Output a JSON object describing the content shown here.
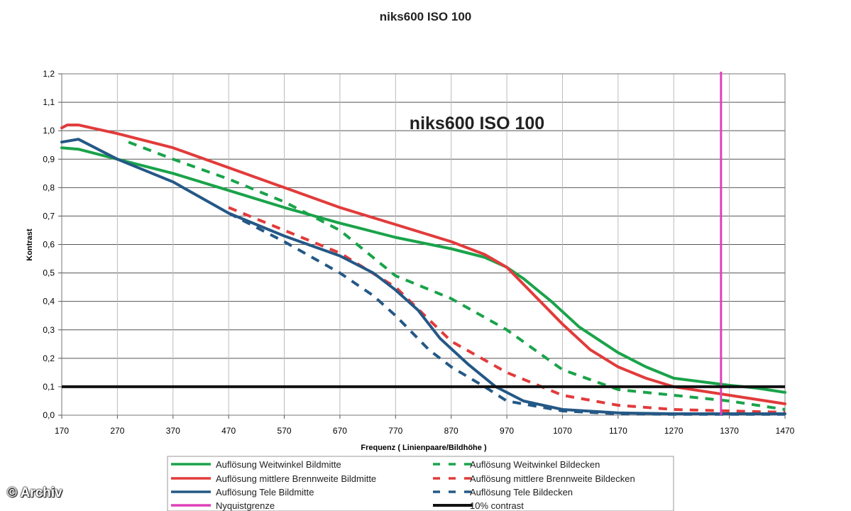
{
  "page": {
    "title": "niks600 ISO 100",
    "watermark": "© Archiv"
  },
  "chart_data": {
    "type": "line",
    "title": "niks600 ISO 100",
    "inner_title": "niks600 ISO 100",
    "xlabel": "Frequenz ( Linienpaare/Bildhöhe )",
    "ylabel": "Kontrast",
    "xlim": [
      170,
      1470
    ],
    "ylim": [
      0,
      1.2
    ],
    "xticks": [
      "170",
      "270",
      "370",
      "470",
      "570",
      "670",
      "770",
      "870",
      "970",
      "1070",
      "1170",
      "1270",
      "1370",
      "1470"
    ],
    "yticks": [
      "0,0",
      "0,1",
      "0,2",
      "0,3",
      "0,4",
      "0,5",
      "0,6",
      "0,7",
      "0,8",
      "0,9",
      "1,0",
      "1,1",
      "1,2"
    ],
    "grid": "horizontal + vertical",
    "legend_position": "bottom",
    "series": [
      {
        "name": "Auflösung Weitwinkel Bildmitte",
        "color": "#1aa34a",
        "dashed": false,
        "x": [
          170,
          200,
          270,
          370,
          470,
          570,
          670,
          770,
          870,
          930,
          970,
          1000,
          1050,
          1100,
          1170,
          1220,
          1270,
          1330,
          1370,
          1420,
          1470
        ],
        "y": [
          0.94,
          0.935,
          0.9,
          0.85,
          0.79,
          0.73,
          0.675,
          0.625,
          0.585,
          0.555,
          0.52,
          0.48,
          0.4,
          0.31,
          0.22,
          0.17,
          0.13,
          0.115,
          0.105,
          0.095,
          0.08
        ]
      },
      {
        "name": "Auflösung Weitwinkel Bildecken",
        "color": "#1aa34a",
        "dashed": true,
        "x": [
          290,
          370,
          470,
          570,
          670,
          770,
          870,
          970,
          1070,
          1170,
          1270,
          1370,
          1470
        ],
        "y": [
          0.96,
          0.9,
          0.83,
          0.75,
          0.65,
          0.49,
          0.41,
          0.3,
          0.16,
          0.09,
          0.07,
          0.05,
          0.02
        ]
      },
      {
        "name": "Auflösung mittlere Brennweite Bildmitte",
        "color": "#e23b3b",
        "dashed": false,
        "x": [
          170,
          180,
          200,
          270,
          370,
          470,
          570,
          670,
          770,
          870,
          930,
          970,
          1020,
          1070,
          1120,
          1170,
          1220,
          1270,
          1370,
          1470
        ],
        "y": [
          1.01,
          1.02,
          1.02,
          0.99,
          0.94,
          0.87,
          0.8,
          0.73,
          0.67,
          0.61,
          0.565,
          0.52,
          0.42,
          0.32,
          0.23,
          0.17,
          0.13,
          0.1,
          0.07,
          0.04
        ]
      },
      {
        "name": "Auflösung mittlere Brennweite Bildecken",
        "color": "#e23b3b",
        "dashed": true,
        "x": [
          470,
          570,
          670,
          770,
          870,
          970,
          1070,
          1170,
          1270,
          1370,
          1470
        ],
        "y": [
          0.73,
          0.65,
          0.57,
          0.45,
          0.26,
          0.15,
          0.07,
          0.035,
          0.02,
          0.015,
          0.01
        ]
      },
      {
        "name": "Auflösung Tele Bildmitte",
        "color": "#245886",
        "dashed": false,
        "x": [
          170,
          200,
          270,
          370,
          470,
          570,
          670,
          730,
          770,
          810,
          850,
          900,
          950,
          1000,
          1070,
          1170,
          1270,
          1370,
          1470
        ],
        "y": [
          0.96,
          0.97,
          0.9,
          0.82,
          0.71,
          0.63,
          0.56,
          0.5,
          0.44,
          0.37,
          0.27,
          0.18,
          0.1,
          0.05,
          0.02,
          0.008,
          0.005,
          0.005,
          0.005
        ]
      },
      {
        "name": "Auflösung Tele Bildecken",
        "color": "#245886",
        "dashed": true,
        "x": [
          470,
          570,
          670,
          730,
          770,
          830,
          870,
          930,
          970,
          1070,
          1170,
          1270,
          1370,
          1470
        ],
        "y": [
          0.71,
          0.61,
          0.5,
          0.42,
          0.35,
          0.23,
          0.17,
          0.1,
          0.05,
          0.015,
          0.005,
          0.003,
          0.003,
          0.003
        ]
      },
      {
        "name": "Nyquistgrenze",
        "color": "#e040b8",
        "dashed": false,
        "vertical_x": 1355
      },
      {
        "name": "10% contrast",
        "color": "#111111",
        "dashed": false,
        "horizontal_y": 0.1
      }
    ]
  }
}
